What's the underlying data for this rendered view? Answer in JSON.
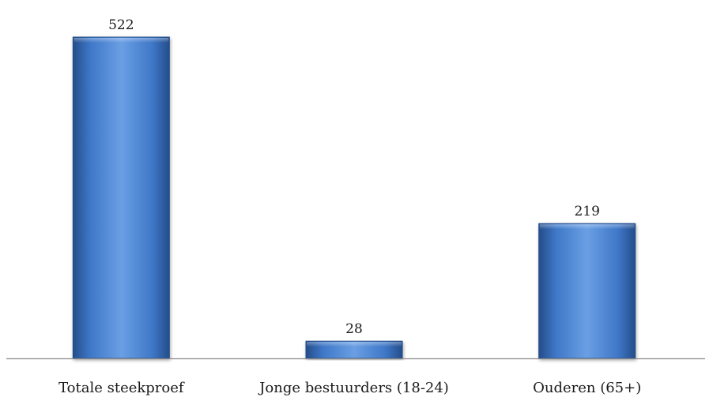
{
  "chart_data": {
    "type": "bar",
    "title": "",
    "xlabel": "",
    "ylabel": "",
    "categories": [
      "Totale steekproef",
      "Jonge bestuurders (18-24)",
      "Ouderen (65+)"
    ],
    "values": [
      522,
      28,
      219
    ],
    "data_labels": [
      "522",
      "28",
      "219"
    ],
    "ylim": [
      0,
      522
    ],
    "grid": false,
    "legend": "none",
    "bar_color": "#3f78c8",
    "bar_highlight": "#6a9fe4",
    "bar_edge": "#244d8a",
    "axis_color": "#8a8a8a"
  }
}
